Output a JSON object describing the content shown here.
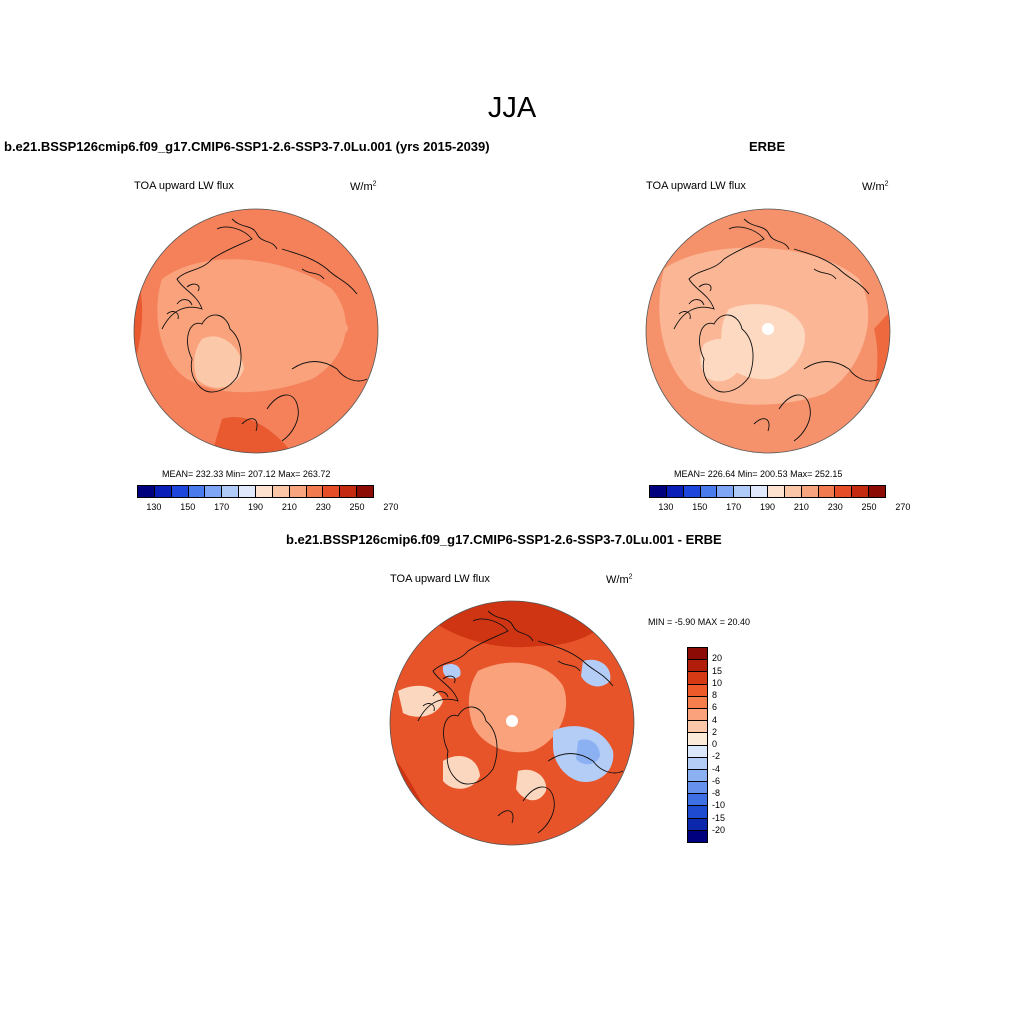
{
  "figure": {
    "season": "JJA"
  },
  "panels": {
    "model": {
      "title": "b.e21.BSSP126cmip6.f09_g17.CMIP6-SSP1-2.6-SSP3-7.0Lu.001 (yrs 2015-2039)",
      "variable": "TOA upward LW flux",
      "units_base": "W/m",
      "units_exp": "2",
      "stats": "MEAN= 232.33  Min= 207.12  Max= 263.72"
    },
    "obs": {
      "title": "ERBE",
      "variable": "TOA upward LW flux",
      "units_base": "W/m",
      "units_exp": "2",
      "stats": "MEAN= 226.64  Min= 200.53  Max= 252.15"
    },
    "diff": {
      "title": "b.e21.BSSP126cmip6.f09_g17.CMIP6-SSP1-2.6-SSP3-7.0Lu.001 - ERBE",
      "variable": "TOA upward LW flux",
      "units_base": "W/m",
      "units_exp": "2",
      "stats": "MIN =  -5.90 MAX =  20.40"
    }
  },
  "colorbars": {
    "absolute": {
      "colors": [
        "#00007f",
        "#0a1fb8",
        "#1d47dc",
        "#4a7bed",
        "#7ea6f4",
        "#b0cbf8",
        "#dfe9fb",
        "#fde3cf",
        "#fbc6a8",
        "#f8a47f",
        "#f27a4f",
        "#e64e27",
        "#c42a10",
        "#8c0b04"
      ],
      "tick_labels": [
        "130",
        "150",
        "170",
        "190",
        "210",
        "230",
        "250",
        "270"
      ]
    },
    "difference": {
      "colors": [
        "#8c0b04",
        "#b01d0a",
        "#d53a14",
        "#ee5a2a",
        "#f67e4d",
        "#f9a27c",
        "#fcc8aa",
        "#fdebd9",
        "#dbe8fb",
        "#b4cdf7",
        "#8cb1f3",
        "#6692ee",
        "#3f6fe4",
        "#1e4bd0",
        "#0b28ad",
        "#00007f"
      ],
      "tick_labels": [
        "20",
        "15",
        "10",
        "8",
        "6",
        "4",
        "2",
        "0",
        "-2",
        "-4",
        "-6",
        "-8",
        "-10",
        "-15",
        "-20"
      ]
    }
  },
  "map_colors": {
    "model_base": "#f4815a",
    "model_light": "#f9a27c",
    "model_pale": "#fcc8aa",
    "model_dark": "#ea5a30",
    "obs_base": "#f6926b",
    "obs_light": "#fbb795",
    "obs_pale": "#fdd9c2",
    "obs_dark": "#ee6a3e",
    "diff_base": "#e8542a",
    "diff_light": "#f9a27c",
    "diff_pale": "#fcd7bf",
    "diff_dark": "#cf3512",
    "diff_blue": "#b4cdf7",
    "diff_blue_dark": "#8cb1f3",
    "coast": "#111111"
  }
}
